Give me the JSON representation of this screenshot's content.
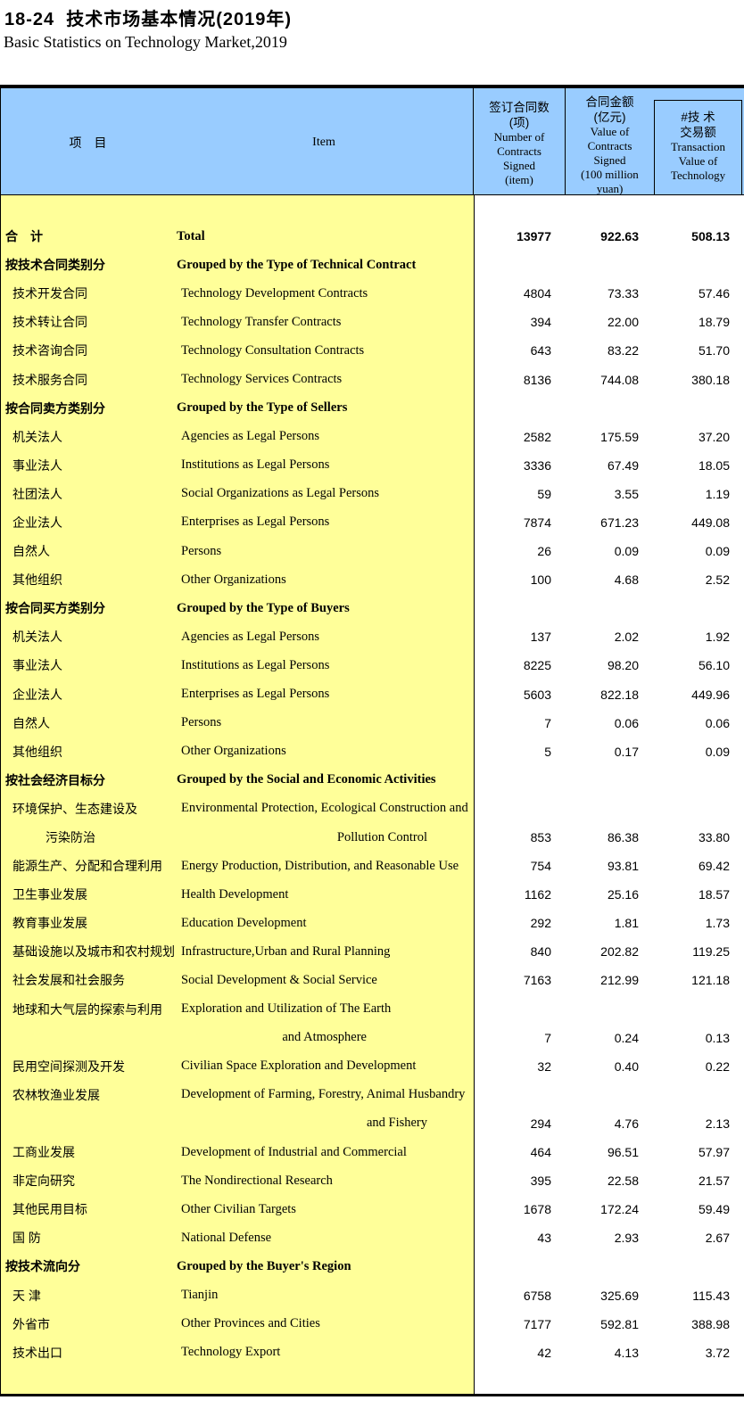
{
  "title": {
    "zh": "18-24  技术市场基本情况(2019年)",
    "en": "Basic Statistics on Technology Market,2019"
  },
  "colors": {
    "header_bg": "#99CCFF",
    "left_bg": "#FFFF99",
    "data_bg": "#FFFFFF",
    "border": "#000000"
  },
  "table": {
    "header": {
      "item_zh": "项　目",
      "item_en": "Item",
      "col1": {
        "zh_lines": [
          "签订合同数",
          "(项)"
        ],
        "en_lines": [
          "Number of",
          "Contracts",
          "Signed",
          "(item)"
        ]
      },
      "col2": {
        "zh_lines": [
          "合同金额",
          "(亿元)"
        ],
        "en_lines": [
          "Value of",
          "Contracts",
          "Signed",
          "(100 million",
          "yuan)"
        ]
      },
      "col3": {
        "zh_lines": [
          "#技 术",
          "交易额"
        ],
        "en_lines": [
          "Transaction",
          "Value of",
          "Technology"
        ]
      }
    },
    "rows": [
      {
        "type": "total",
        "zh": "合　计",
        "en": "Total",
        "values": [
          "13977",
          "922.63",
          "508.13"
        ]
      },
      {
        "type": "section",
        "zh": "按技术合同类别分",
        "en": "Grouped by the Type of Technical Contract"
      },
      {
        "type": "item",
        "zh": "技术开发合同",
        "en": "Technology Development Contracts",
        "values": [
          "4804",
          "73.33",
          "57.46"
        ]
      },
      {
        "type": "item",
        "zh": "技术转让合同",
        "en": "Technology Transfer Contracts",
        "values": [
          "394",
          "22.00",
          "18.79"
        ]
      },
      {
        "type": "item",
        "zh": "技术咨询合同",
        "en": "Technology Consultation Contracts",
        "values": [
          "643",
          "83.22",
          "51.70"
        ]
      },
      {
        "type": "item",
        "zh": "技术服务合同",
        "en": "Technology Services Contracts",
        "values": [
          "8136",
          "744.08",
          "380.18"
        ]
      },
      {
        "type": "section",
        "zh": "按合同卖方类别分",
        "en": "Grouped by the Type of Sellers"
      },
      {
        "type": "item",
        "zh": "机关法人",
        "en": "Agencies as Legal Persons",
        "values": [
          "2582",
          "175.59",
          "37.20"
        ]
      },
      {
        "type": "item",
        "zh": "事业法人",
        "en": "Institutions as Legal Persons",
        "values": [
          "3336",
          "67.49",
          "18.05"
        ]
      },
      {
        "type": "item",
        "zh": "社团法人",
        "en": "Social Organizations as Legal Persons",
        "values": [
          "59",
          "3.55",
          "1.19"
        ]
      },
      {
        "type": "item",
        "zh": "企业法人",
        "en": "Enterprises as Legal Persons",
        "values": [
          "7874",
          "671.23",
          "449.08"
        ]
      },
      {
        "type": "item",
        "zh": "自然人",
        "en": "Persons",
        "values": [
          "26",
          "0.09",
          "0.09"
        ]
      },
      {
        "type": "item",
        "zh": "其他组织",
        "en": "Other Organizations",
        "values": [
          "100",
          "4.68",
          "2.52"
        ]
      },
      {
        "type": "section",
        "zh": "按合同买方类别分",
        "en": "Grouped by the Type of Buyers"
      },
      {
        "type": "item",
        "zh": "机关法人",
        "en": "Agencies as Legal Persons",
        "values": [
          "137",
          "2.02",
          "1.92"
        ]
      },
      {
        "type": "item",
        "zh": "事业法人",
        "en": "Institutions as Legal Persons",
        "values": [
          "8225",
          "98.20",
          "56.10"
        ]
      },
      {
        "type": "item",
        "zh": "企业法人",
        "en": "Enterprises as Legal Persons",
        "values": [
          "5603",
          "822.18",
          "449.96"
        ]
      },
      {
        "type": "item",
        "zh": "自然人",
        "en": "Persons",
        "values": [
          "7",
          "0.06",
          "0.06"
        ]
      },
      {
        "type": "item",
        "zh": "其他组织",
        "en": "Other Organizations",
        "values": [
          "5",
          "0.17",
          "0.09"
        ]
      },
      {
        "type": "section",
        "zh": "按社会经济目标分",
        "en": "Grouped by the Social and Economic Activities"
      },
      {
        "type": "item2",
        "zh": "环境保护、生态建设及",
        "en": "Environmental Protection, Ecological Construction and",
        "zh2": "污染防治",
        "en2": "Pollution Control",
        "values": [
          "853",
          "86.38",
          "33.80"
        ]
      },
      {
        "type": "item",
        "zh": "能源生产、分配和合理利用",
        "en": "Energy Production, Distribution, and Reasonable Use",
        "values": [
          "754",
          "93.81",
          "69.42"
        ]
      },
      {
        "type": "item",
        "zh": "卫生事业发展",
        "en": "Health Development",
        "values": [
          "1162",
          "25.16",
          "18.57"
        ]
      },
      {
        "type": "item",
        "zh": "教育事业发展",
        "en": "Education Development",
        "values": [
          "292",
          "1.81",
          "1.73"
        ]
      },
      {
        "type": "item",
        "zh": "基础设施以及城市和农村规划",
        "en": "Infrastructure,Urban and Rural Planning",
        "values": [
          "840",
          "202.82",
          "119.25"
        ]
      },
      {
        "type": "item",
        "zh": "社会发展和社会服务",
        "en": "Social Development & Social Service",
        "values": [
          "7163",
          "212.99",
          "121.18"
        ]
      },
      {
        "type": "item2",
        "zh": "地球和大气层的探索与利用",
        "en": "Exploration and Utilization of The Earth",
        "zh2": "",
        "en2": "and Atmosphere",
        "short": true,
        "values": [
          "7",
          "0.24",
          "0.13"
        ]
      },
      {
        "type": "item",
        "zh": "民用空间探测及开发",
        "en": "Civilian Space Exploration and Development",
        "values": [
          "32",
          "0.40",
          "0.22"
        ]
      },
      {
        "type": "item2",
        "zh": "农林牧渔业发展",
        "en": "Development of Farming, Forestry, Animal Husbandry",
        "zh2": "",
        "en2": "and Fishery",
        "values": [
          "294",
          "4.76",
          "2.13"
        ]
      },
      {
        "type": "item",
        "zh": "工商业发展",
        "en": "Development of Industrial and Commercial",
        "values": [
          "464",
          "96.51",
          "57.97"
        ]
      },
      {
        "type": "item",
        "zh": "非定向研究",
        "en": "The Nondirectional Research",
        "values": [
          "395",
          "22.58",
          "21.57"
        ]
      },
      {
        "type": "item",
        "zh": "其他民用目标",
        "en": "Other Civilian Targets",
        "values": [
          "1678",
          "172.24",
          "59.49"
        ]
      },
      {
        "type": "item",
        "zh": "国 防",
        "en": "National Defense",
        "values": [
          "43",
          "2.93",
          "2.67"
        ]
      },
      {
        "type": "section",
        "zh": "按技术流向分",
        "en": "Grouped by the Buyer's Region"
      },
      {
        "type": "item",
        "zh": "天 津",
        "en": "Tianjin",
        "values": [
          "6758",
          "325.69",
          "115.43"
        ]
      },
      {
        "type": "item",
        "zh": "外省市",
        "en": "Other Provinces and Cities",
        "values": [
          "7177",
          "592.81",
          "388.98"
        ]
      },
      {
        "type": "item",
        "zh": "技术出口",
        "en": "Technology Export",
        "values": [
          "42",
          "4.13",
          "3.72"
        ]
      }
    ]
  }
}
